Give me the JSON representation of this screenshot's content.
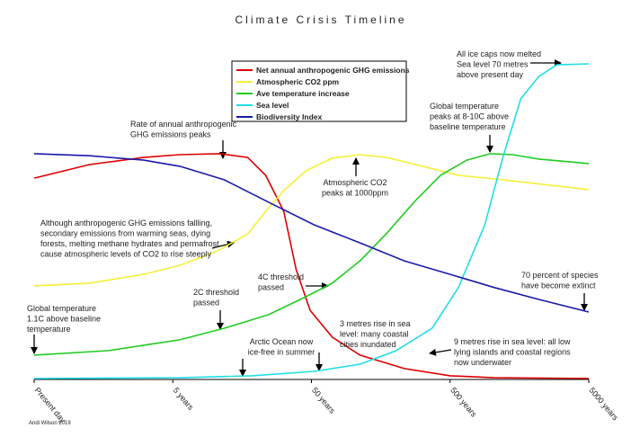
{
  "chart_data": {
    "type": "line",
    "title": "Climate Crisis Timeline",
    "xlim": [
      0,
      4
    ],
    "ylim": [
      0,
      100
    ],
    "xticks": [
      {
        "value": 0,
        "label": "Present day"
      },
      {
        "value": 1,
        "label": "5 years"
      },
      {
        "value": 2,
        "label": "50 years"
      },
      {
        "value": 3,
        "label": "500 years"
      },
      {
        "value": 4,
        "label": "5000 years"
      }
    ],
    "series": [
      {
        "name": "Net annual anthropogenic GHG emissions",
        "color": "#dd0000",
        "x": [
          0,
          0.4,
          0.79,
          1.05,
          1.34,
          1.54,
          1.67,
          1.8,
          1.89,
          1.99,
          2.15,
          2.35,
          2.67,
          3.0,
          3.32,
          4.0
        ],
        "values": [
          59.4,
          63.4,
          65.5,
          66.3,
          66.6,
          65.5,
          60.2,
          49.6,
          32.4,
          20.4,
          12.5,
          7.2,
          3.2,
          1.1,
          0.5,
          0.3
        ]
      },
      {
        "name": "Atmospheric CO2 ppm",
        "color": "#f5f03a",
        "x": [
          0,
          0.4,
          0.79,
          1.05,
          1.31,
          1.54,
          1.67,
          1.8,
          1.96,
          2.15,
          2.35,
          2.54,
          2.8,
          3.06,
          3.38,
          4.0
        ],
        "values": [
          27.6,
          28.4,
          31.0,
          33.7,
          37.7,
          42.9,
          49.6,
          55.7,
          61.5,
          65.3,
          66.3,
          65.5,
          62.9,
          60.2,
          58.9,
          56.0
        ]
      },
      {
        "name": "Ave temperature increase",
        "color": "#22cc22",
        "x": [
          0,
          0.53,
          1.05,
          1.37,
          1.69,
          1.96,
          2.15,
          2.35,
          2.54,
          2.74,
          2.93,
          3.12,
          3.29,
          3.45,
          3.64,
          4.0
        ],
        "values": [
          7.2,
          8.5,
          11.7,
          15.1,
          19.1,
          24.4,
          28.4,
          35.0,
          43.0,
          52.3,
          60.2,
          64.7,
          66.6,
          66.3,
          65.0,
          63.7
        ]
      },
      {
        "name": "Sea level",
        "color": "#22dde8",
        "x": [
          0,
          1.05,
          1.57,
          2.02,
          2.35,
          2.61,
          2.87,
          3.06,
          3.25,
          3.38,
          3.51,
          3.64,
          3.77,
          4.0
        ],
        "values": [
          0.3,
          0.5,
          1.1,
          2.4,
          4.5,
          8.5,
          15.1,
          27.1,
          45.6,
          65.5,
          82.8,
          89.4,
          92.8,
          93.1
        ]
      },
      {
        "name": "Biodiversity Index",
        "color": "#1a1aa8",
        "x": [
          0,
          0.4,
          0.79,
          1.05,
          1.37,
          1.69,
          2.02,
          2.35,
          2.67,
          3.0,
          3.32,
          3.64,
          4.0
        ],
        "values": [
          66.6,
          66.0,
          64.7,
          62.9,
          58.9,
          52.3,
          45.6,
          40.3,
          35.0,
          31.0,
          27.1,
          23.6,
          19.9
        ]
      }
    ],
    "annotations": [
      {
        "lines": [
          "Rate of annual anthropogenic",
          "GHG emissions peaks"
        ]
      },
      {
        "lines": [
          "All ice caps now melted",
          "Sea level 70 metres",
          "above present day"
        ]
      },
      {
        "lines": [
          "Global temperature",
          "peaks at 8-10C above",
          "baseline temperature"
        ]
      },
      {
        "lines": [
          "Atmospheric CO2",
          "peaks at 1000ppm"
        ]
      },
      {
        "lines": [
          "Although anthropogenic GHG  emissions fallling,",
          "secondary emissions from warming seas, dying",
          "forests, melting methane hydrates and permafrost",
          "cause atmospheric levels of CO2 to rise steeply"
        ]
      },
      {
        "lines": [
          "4C threshold",
          "passed"
        ]
      },
      {
        "lines": [
          "70 percent of species",
          "have become extinct"
        ]
      },
      {
        "lines": [
          "2C threshold",
          "passed"
        ]
      },
      {
        "lines": [
          "Global temperature",
          "1.1C above baseline",
          "temperature"
        ]
      },
      {
        "lines": [
          "Arctic Ocean now",
          "ice-free in summer"
        ]
      },
      {
        "lines": [
          "3 metres rise in sea",
          "level: many coastal",
          "cities inundated"
        ]
      },
      {
        "lines": [
          "9 metres rise in sea level: all low",
          "lying islands and coastal regions",
          "now underwater"
        ]
      }
    ],
    "credit": "Andi Wilson 2019"
  }
}
